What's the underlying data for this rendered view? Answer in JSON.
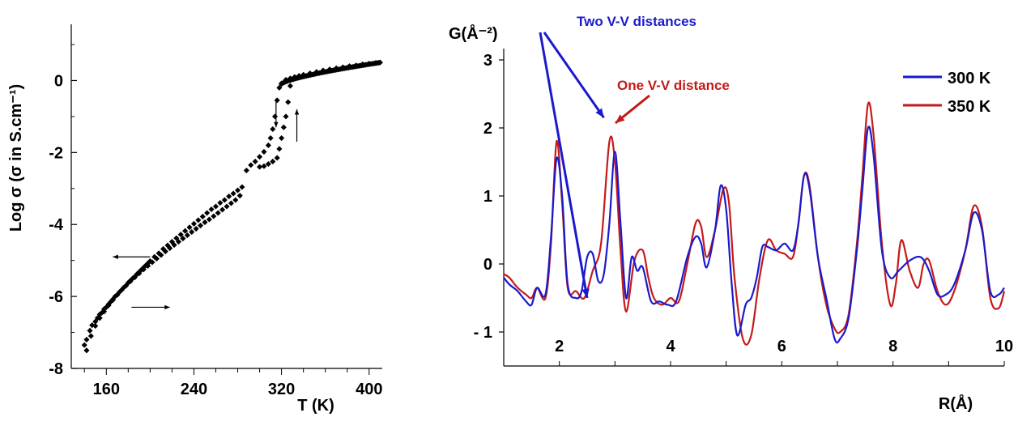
{
  "chart_data": [
    {
      "type": "scatter",
      "title": "",
      "xlabel": "T (K)",
      "ylabel": "Log σ (σ in S.cm⁻¹)",
      "xlim": [
        128,
        412
      ],
      "ylim": [
        -8,
        1
      ],
      "xticks": [
        160,
        240,
        320,
        400
      ],
      "yticks": [
        0,
        -2,
        -4,
        -6,
        -8
      ],
      "grid": false,
      "legend": "none",
      "marker_color": "#000000",
      "series": [
        {
          "x": [
            140,
            142,
            145,
            147,
            150,
            152,
            154,
            156,
            158,
            160,
            162,
            164,
            166,
            168,
            170,
            172,
            174,
            176,
            178,
            180,
            182,
            184,
            186,
            188,
            190,
            192,
            194,
            196,
            198,
            200,
            204,
            208,
            212,
            216,
            220,
            224,
            228,
            232,
            236,
            240,
            244,
            248,
            252,
            256,
            260,
            264,
            268,
            272,
            276,
            280,
            284,
            288,
            292,
            296,
            300,
            304,
            308,
            310,
            312,
            314,
            316,
            318,
            320,
            324,
            328,
            332,
            336,
            340,
            346,
            352,
            358,
            364,
            370,
            376,
            382,
            388,
            394,
            400,
            406,
            410
          ],
          "y": [
            -7.35,
            -7.2,
            -6.95,
            -6.8,
            -6.7,
            -6.6,
            -6.5,
            -6.45,
            -6.35,
            -6.3,
            -6.22,
            -6.15,
            -6.08,
            -6.0,
            -5.95,
            -5.88,
            -5.82,
            -5.75,
            -5.7,
            -5.62,
            -5.56,
            -5.5,
            -5.45,
            -5.38,
            -5.32,
            -5.26,
            -5.2,
            -5.14,
            -5.08,
            -5.02,
            -4.9,
            -4.8,
            -4.68,
            -4.58,
            -4.48,
            -4.38,
            -4.28,
            -4.18,
            -4.08,
            -3.98,
            -3.88,
            -3.78,
            -3.68,
            -3.58,
            -3.5,
            -3.4,
            -3.32,
            -3.22,
            -3.14,
            -3.05,
            -2.96,
            -2.5,
            -2.35,
            -2.25,
            -2.12,
            -1.98,
            -1.8,
            -1.6,
            -1.35,
            -1.0,
            -0.55,
            -0.2,
            -0.08,
            0.02,
            0.06,
            0.1,
            0.13,
            0.16,
            0.2,
            0.24,
            0.28,
            0.31,
            0.34,
            0.37,
            0.4,
            0.42,
            0.45,
            0.47,
            0.49,
            0.5
          ]
        },
        {
          "x": [
            142,
            146,
            150,
            154,
            158,
            162,
            166,
            170,
            174,
            178,
            182,
            186,
            190,
            194,
            198,
            202,
            206,
            210,
            214,
            218,
            222,
            226,
            230,
            234,
            238,
            242,
            246,
            250,
            254,
            258,
            262,
            266,
            270,
            274,
            278,
            282,
            300,
            304,
            308,
            312,
            316,
            318,
            320,
            322,
            324,
            326,
            328
          ],
          "y": [
            -7.5,
            -7.1,
            -6.82,
            -6.6,
            -6.42,
            -6.25,
            -6.1,
            -5.96,
            -5.82,
            -5.7,
            -5.58,
            -5.47,
            -5.36,
            -5.25,
            -5.15,
            -5.05,
            -4.95,
            -4.85,
            -4.75,
            -4.66,
            -4.57,
            -4.48,
            -4.39,
            -4.3,
            -4.21,
            -4.12,
            -4.03,
            -3.94,
            -3.86,
            -3.77,
            -3.68,
            -3.59,
            -3.5,
            -3.41,
            -3.32,
            -3.2,
            -2.4,
            -2.38,
            -2.32,
            -2.25,
            -2.15,
            -1.9,
            -1.6,
            -1.3,
            -1.0,
            -0.6,
            -0.15
          ]
        }
      ],
      "annotations": [
        {
          "type": "arrow",
          "direction": "down",
          "x": 315,
          "y_from": -0.5,
          "y_to": -1.3
        },
        {
          "type": "arrow",
          "direction": "up",
          "x": 334,
          "y_from": -1.7,
          "y_to": -0.8
        },
        {
          "type": "arrow",
          "direction": "left",
          "x_from": 200,
          "x_to": 166,
          "y": -4.9
        },
        {
          "type": "arrow",
          "direction": "right",
          "x_from": 183,
          "x_to": 218,
          "y": -6.3
        }
      ]
    },
    {
      "type": "line",
      "title": "",
      "xlabel": "R(Å)",
      "ylabel": "G(Å⁻²)",
      "xlim": [
        1,
        10
      ],
      "ylim": [
        -1.5,
        3
      ],
      "xticks": [
        2,
        4,
        6,
        8,
        10
      ],
      "yticks": [
        3,
        2,
        1,
        0,
        -1
      ],
      "ytick_labels": [
        "3",
        "2",
        "1",
        "0",
        "- 1"
      ],
      "grid": false,
      "legend": "top-right",
      "series": [
        {
          "name": "300 K",
          "color": "#1a1acc",
          "x": [
            1.0,
            1.1,
            1.25,
            1.4,
            1.5,
            1.6,
            1.75,
            1.85,
            1.95,
            2.05,
            2.15,
            2.3,
            2.4,
            2.5,
            2.6,
            2.7,
            2.8,
            2.9,
            3.0,
            3.1,
            3.2,
            3.3,
            3.4,
            3.5,
            3.65,
            3.8,
            3.95,
            4.1,
            4.3,
            4.45,
            4.55,
            4.65,
            4.8,
            4.9,
            5.0,
            5.1,
            5.2,
            5.35,
            5.45,
            5.55,
            5.65,
            5.75,
            5.9,
            6.05,
            6.2,
            6.3,
            6.4,
            6.5,
            6.65,
            6.8,
            6.95,
            7.05,
            7.2,
            7.35,
            7.45,
            7.55,
            7.65,
            7.8,
            7.95,
            8.1,
            8.3,
            8.5,
            8.65,
            8.8,
            8.95,
            9.1,
            9.3,
            9.45,
            9.6,
            9.75,
            9.9,
            10.0
          ],
          "y": [
            -0.2,
            -0.3,
            -0.4,
            -0.55,
            -0.6,
            -0.35,
            -0.45,
            0.4,
            1.55,
            1.0,
            -0.3,
            -0.5,
            -0.4,
            0.1,
            0.15,
            -0.25,
            -0.15,
            0.6,
            1.65,
            0.6,
            -0.5,
            0.1,
            -0.1,
            -0.05,
            -0.55,
            -0.55,
            -0.6,
            -0.55,
            0.1,
            0.4,
            0.3,
            -0.05,
            0.5,
            1.15,
            0.8,
            -0.3,
            -1.05,
            -0.6,
            -0.5,
            -0.2,
            0.25,
            0.25,
            0.2,
            0.3,
            0.2,
            0.6,
            1.3,
            1.1,
            0.1,
            -0.5,
            -1.1,
            -1.1,
            -0.8,
            0.2,
            1.1,
            2.0,
            1.6,
            0.2,
            -0.2,
            -0.1,
            0.05,
            0.1,
            -0.1,
            -0.45,
            -0.45,
            -0.3,
            0.2,
            0.75,
            0.5,
            -0.4,
            -0.45,
            -0.35
          ]
        },
        {
          "name": "350 K",
          "color": "#c41a1a",
          "x": [
            1.0,
            1.1,
            1.25,
            1.4,
            1.5,
            1.6,
            1.75,
            1.85,
            1.95,
            2.05,
            2.15,
            2.3,
            2.45,
            2.6,
            2.75,
            2.9,
            3.0,
            3.1,
            3.2,
            3.35,
            3.5,
            3.6,
            3.7,
            3.85,
            4.0,
            4.15,
            4.3,
            4.45,
            4.55,
            4.65,
            4.8,
            4.95,
            5.05,
            5.15,
            5.3,
            5.45,
            5.6,
            5.75,
            5.9,
            6.05,
            6.2,
            6.3,
            6.4,
            6.5,
            6.65,
            6.8,
            6.95,
            7.05,
            7.2,
            7.35,
            7.45,
            7.55,
            7.65,
            7.8,
            7.95,
            8.05,
            8.15,
            8.3,
            8.45,
            8.55,
            8.65,
            8.8,
            8.95,
            9.1,
            9.3,
            9.45,
            9.6,
            9.75,
            9.9,
            10.0
          ],
          "y": [
            -0.15,
            -0.2,
            -0.35,
            -0.45,
            -0.5,
            -0.35,
            -0.5,
            0.3,
            1.8,
            0.9,
            -0.35,
            -0.4,
            -0.5,
            -0.1,
            0.3,
            1.8,
            1.5,
            0.2,
            -0.7,
            0.05,
            0.2,
            -0.2,
            -0.5,
            -0.6,
            -0.5,
            -0.55,
            0.0,
            0.6,
            0.55,
            0.1,
            0.5,
            1.1,
            0.9,
            -0.2,
            -1.1,
            -1.05,
            -0.2,
            0.35,
            0.2,
            0.15,
            0.1,
            0.6,
            1.3,
            1.15,
            0.1,
            -0.6,
            -0.95,
            -1.0,
            -0.75,
            0.3,
            1.3,
            2.35,
            1.9,
            0.3,
            -0.6,
            -0.3,
            0.35,
            -0.1,
            -0.35,
            0.0,
            0.05,
            -0.4,
            -0.6,
            -0.4,
            0.2,
            0.85,
            0.55,
            -0.5,
            -0.65,
            -0.4
          ]
        }
      ],
      "annotations": [
        {
          "text": "Two V-V distances",
          "color": "#1a1acc",
          "arrow_targets": [
            [
              2.5,
              -0.5
            ],
            [
              2.8,
              2.15
            ]
          ]
        },
        {
          "text": "One V-V distance",
          "color": "#c41a1a",
          "arrow_targets": [
            [
              2.95,
              2.0
            ]
          ]
        }
      ]
    }
  ]
}
